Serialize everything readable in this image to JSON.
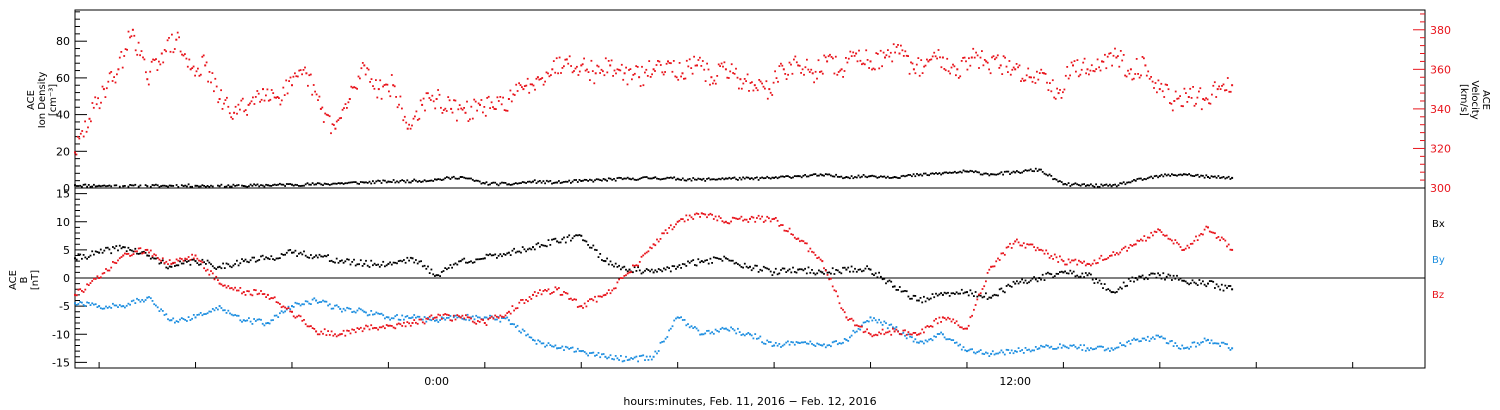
{
  "colors": {
    "black": "#000000",
    "red": "#e8141c",
    "blue": "#1f8fe0"
  },
  "chart_data": [
    {
      "type": "scatter",
      "panel": "top",
      "xlim": [
        -1.5,
        26.5
      ],
      "ylabel_left": [
        "ACE",
        "Ion Density",
        "[cm⁻³]"
      ],
      "ylabel_right": [
        "ACE",
        "Velocity",
        "[km/s]"
      ],
      "ylim_left": [
        0,
        97
      ],
      "ylim_right": [
        300,
        390
      ],
      "yticks_left": [
        "0",
        "20",
        "40",
        "60",
        "80"
      ],
      "yticks_left_values": [
        0,
        20,
        40,
        60,
        80
      ],
      "yticks_right": [
        "300",
        "320",
        "340",
        "360",
        "380"
      ],
      "yticks_right_values": [
        300,
        320,
        340,
        360,
        380
      ],
      "series": [
        {
          "axis": "left",
          "color": "black",
          "x": [
            -1.5,
            -1,
            -0.5,
            0,
            0.5,
            1,
            1.5,
            2,
            2.5,
            3,
            3.5,
            4,
            4.5,
            5,
            5.5,
            6,
            6.5,
            7,
            7.5,
            8,
            8.5,
            9,
            9.5,
            10,
            10.5,
            11,
            11.5,
            12,
            12.5,
            13,
            13.5,
            14,
            14.5,
            15,
            15.5,
            16,
            16.5,
            17,
            17.5,
            18,
            18.5,
            19,
            19.5,
            20,
            20.5,
            21,
            21.5,
            22,
            22.5
          ],
          "y": [
            1.5,
            1.2,
            1.0,
            1.0,
            1.2,
            1.2,
            1.0,
            1.1,
            1.5,
            1.8,
            2.0,
            2.5,
            3.0,
            3.5,
            3.8,
            4.5,
            6.0,
            2.5,
            2.0,
            3.5,
            3.0,
            3.8,
            4.5,
            5.0,
            5.5,
            5.0,
            4.5,
            5.2,
            5.0,
            5.5,
            6.5,
            7.0,
            6.0,
            6.5,
            6.0,
            7.0,
            8.0,
            9.0,
            7.5,
            8.5,
            10.0,
            2.0,
            1.5,
            1.0,
            4.0,
            6.5,
            7.5,
            6.0,
            5.5
          ]
        },
        {
          "axis": "right",
          "color": "red",
          "x": [
            -1.5,
            -1.2,
            -0.9,
            -0.6,
            -0.3,
            0,
            0.3,
            0.6,
            0.9,
            1.2,
            1.5,
            1.8,
            2.1,
            2.4,
            2.7,
            3,
            3.3,
            3.6,
            3.9,
            4.2,
            4.5,
            4.8,
            5.1,
            5.4,
            5.7,
            6,
            6.3,
            6.6,
            6.9,
            7.2,
            7.5,
            7.8,
            8.1,
            8.4,
            8.7,
            9,
            9.3,
            9.6,
            9.9,
            10.2,
            10.5,
            10.8,
            11.1,
            11.4,
            11.7,
            12,
            12.3,
            12.6,
            12.9,
            13.2,
            13.5,
            13.8,
            14.1,
            14.4,
            14.7,
            15,
            15.3,
            15.6,
            15.9,
            16.2,
            16.5,
            16.8,
            17.1,
            17.4,
            17.7,
            18,
            18.3,
            18.6,
            18.9,
            19.2,
            19.5,
            19.8,
            20.1,
            20.4,
            20.7,
            21,
            21.3,
            21.6,
            21.9,
            22.2,
            22.5
          ],
          "y": [
            318,
            335,
            350,
            360,
            380,
            355,
            368,
            375,
            360,
            362,
            345,
            338,
            342,
            350,
            346,
            352,
            358,
            340,
            330,
            345,
            362,
            350,
            352,
            330,
            342,
            345,
            340,
            338,
            342,
            340,
            345,
            350,
            356,
            360,
            365,
            362,
            358,
            362,
            358,
            356,
            360,
            364,
            358,
            362,
            356,
            360,
            355,
            352,
            350,
            360,
            362,
            358,
            364,
            360,
            368,
            364,
            366,
            368,
            360,
            364,
            366,
            360,
            366,
            364,
            362,
            360,
            356,
            358,
            348,
            362,
            360,
            364,
            366,
            360,
            362,
            350,
            344,
            346,
            345,
            350,
            352
          ]
        }
      ]
    },
    {
      "type": "scatter",
      "panel": "bottom",
      "xlim": [
        -1.5,
        26.5
      ],
      "ylabel_left": [
        "ACE",
        "B",
        "[nT]"
      ],
      "ylim": [
        -16,
        16
      ],
      "yticks": [
        "-15",
        "-10",
        "-5",
        "0",
        "5",
        "10",
        "15"
      ],
      "yticks_values": [
        -15,
        -10,
        -5,
        0,
        5,
        10,
        15
      ],
      "zero_line": true,
      "legend": [
        "Bx",
        "By",
        "Bz"
      ],
      "x_title": "hours:minutes, Feb. 11, 2016 − Feb. 12, 2016",
      "xticks": [
        "0:00",
        "12:00"
      ],
      "xticks_values": [
        6,
        18
      ],
      "series": [
        {
          "name": "Bx",
          "color": "black",
          "x": [
            -1.5,
            -1.0,
            -0.5,
            0.0,
            0.5,
            1.0,
            1.5,
            2.0,
            2.5,
            3.0,
            3.5,
            4.0,
            4.5,
            5.0,
            5.5,
            6.0,
            6.5,
            7.0,
            7.5,
            8.0,
            8.5,
            9.0,
            9.5,
            10.0,
            10.5,
            11.0,
            11.5,
            12.0,
            12.5,
            13.0,
            13.5,
            14.0,
            14.5,
            15.0,
            15.5,
            16.0,
            16.5,
            17.0,
            17.5,
            18.0,
            18.5,
            19.0,
            19.5,
            20.0,
            20.5,
            21.0,
            21.5,
            22.0,
            22.5
          ],
          "y": [
            3.5,
            4.5,
            5.5,
            4.0,
            2.0,
            3.0,
            2.0,
            3.0,
            3.5,
            4.5,
            4.0,
            3.0,
            2.5,
            2.5,
            3.5,
            0.5,
            3.0,
            3.5,
            4.5,
            5.5,
            6.5,
            7.5,
            3.0,
            1.5,
            1.0,
            2.0,
            3.0,
            3.5,
            2.0,
            1.0,
            1.5,
            1.0,
            1.5,
            1.5,
            -1.5,
            -4.0,
            -3.0,
            -2.5,
            -3.5,
            -1.0,
            0.0,
            1.0,
            0.5,
            -2.5,
            0.0,
            0.5,
            -0.5,
            -1.0,
            -2.0
          ]
        },
        {
          "name": "By",
          "color": "blue",
          "x": [
            -1.5,
            -1.0,
            -0.5,
            0.0,
            0.5,
            1.0,
            1.5,
            2.0,
            2.5,
            3.0,
            3.5,
            4.0,
            4.5,
            5.0,
            5.5,
            6.0,
            6.5,
            7.0,
            7.5,
            8.0,
            8.5,
            9.0,
            9.5,
            10.0,
            10.5,
            11.0,
            11.5,
            12.0,
            12.5,
            13.0,
            13.5,
            14.0,
            14.5,
            15.0,
            15.5,
            16.0,
            16.5,
            17.0,
            17.5,
            18.0,
            18.5,
            19.0,
            19.5,
            20.0,
            20.5,
            21.0,
            21.5,
            22.0,
            22.5
          ],
          "y": [
            -4.5,
            -5.0,
            -5.0,
            -3.5,
            -7.5,
            -7.0,
            -5.0,
            -7.5,
            -8.0,
            -5.0,
            -4.0,
            -5.5,
            -6.0,
            -7.0,
            -7.0,
            -7.5,
            -7.0,
            -7.0,
            -7.5,
            -11.0,
            -12.5,
            -13.0,
            -14.0,
            -14.5,
            -14.0,
            -7.0,
            -10.0,
            -9.0,
            -10.0,
            -12.0,
            -11.5,
            -12.0,
            -11.0,
            -7.0,
            -9.0,
            -11.5,
            -10.0,
            -13.0,
            -13.5,
            -13.0,
            -12.5,
            -12.0,
            -12.5,
            -12.5,
            -11.0,
            -10.5,
            -12.5,
            -11.0,
            -12.5
          ]
        },
        {
          "name": "Bz",
          "color": "red",
          "x": [
            -1.5,
            -1.0,
            -0.5,
            0.0,
            0.5,
            1.0,
            1.5,
            2.0,
            2.5,
            3.0,
            3.5,
            4.0,
            4.5,
            5.0,
            5.5,
            6.0,
            6.5,
            7.0,
            7.5,
            8.0,
            8.5,
            9.0,
            9.5,
            10.0,
            10.5,
            11.0,
            11.5,
            12.0,
            12.5,
            13.0,
            13.5,
            14.0,
            14.5,
            15.0,
            15.5,
            16.0,
            16.5,
            17.0,
            17.5,
            18.0,
            18.5,
            19.0,
            19.5,
            20.0,
            20.5,
            21.0,
            21.5,
            22.0,
            22.5
          ],
          "y": [
            -3.0,
            0.0,
            4.0,
            5.0,
            2.5,
            4.0,
            -1.0,
            -2.5,
            -3.0,
            -6.0,
            -9.5,
            -10.0,
            -9.0,
            -8.5,
            -8.0,
            -7.0,
            -7.0,
            -8.0,
            -6.0,
            -3.0,
            -2.0,
            -5.0,
            -3.0,
            1.0,
            6.0,
            10.0,
            11.5,
            10.0,
            10.5,
            10.5,
            7.0,
            3.0,
            -7.0,
            -10.0,
            -9.5,
            -10.0,
            -7.0,
            -9.0,
            2.0,
            6.5,
            5.0,
            3.0,
            2.5,
            4.0,
            6.0,
            8.5,
            5.0,
            9.0,
            5.0
          ]
        }
      ]
    }
  ]
}
